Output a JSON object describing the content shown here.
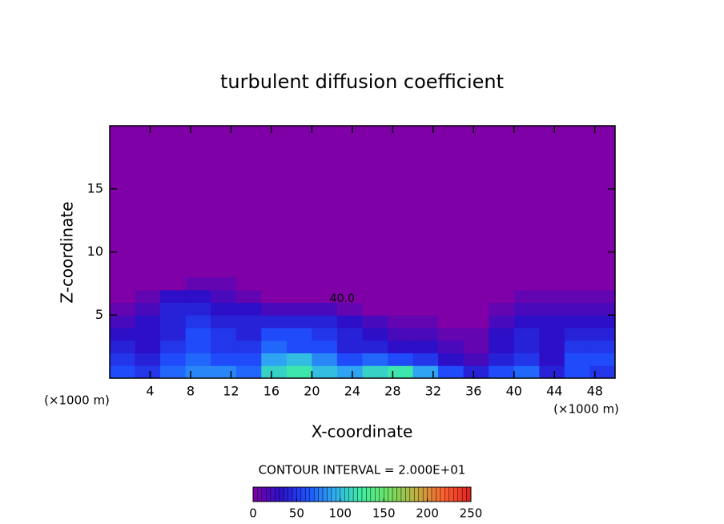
{
  "chart_data": {
    "type": "heatmap",
    "title": "turbulent diffusion coefficient",
    "x_label": "X-coordinate",
    "y_label": "Z-coordinate",
    "x_unit_label": "(×1000 m)",
    "y_unit_label": "(×1000 m)",
    "contour_interval_label": "CONTOUR INTERVAL = 2.000E+01",
    "annotation": "40.0",
    "xlim": [
      0,
      50
    ],
    "xticks": [
      4,
      8,
      12,
      16,
      20,
      24,
      28,
      32,
      36,
      40,
      44,
      48
    ],
    "ylim": [
      0,
      20
    ],
    "yticks": [
      5,
      10,
      15
    ],
    "x": [
      1.25,
      3.75,
      6.25,
      8.75,
      11.25,
      13.75,
      16.25,
      18.75,
      21.25,
      23.75,
      26.25,
      28.75,
      31.25,
      33.75,
      36.25,
      38.75,
      41.25,
      43.75,
      46.25,
      48.75
    ],
    "y": [
      0.5,
      1.5,
      2.5,
      3.5,
      4.5,
      5.5,
      6.5,
      7.5
    ],
    "values": [
      [
        60,
        50,
        70,
        80,
        80,
        70,
        110,
        120,
        100,
        90,
        110,
        120,
        90,
        60,
        40,
        60,
        70,
        40,
        60,
        50
      ],
      [
        50,
        40,
        60,
        70,
        60,
        60,
        90,
        100,
        80,
        60,
        70,
        60,
        50,
        30,
        20,
        40,
        50,
        30,
        60,
        60
      ],
      [
        40,
        30,
        50,
        60,
        50,
        50,
        70,
        60,
        60,
        40,
        40,
        30,
        30,
        20,
        10,
        30,
        40,
        30,
        50,
        50
      ],
      [
        30,
        30,
        40,
        60,
        50,
        40,
        60,
        60,
        50,
        40,
        30,
        20,
        20,
        10,
        10,
        30,
        40,
        30,
        40,
        40
      ],
      [
        20,
        30,
        40,
        50,
        40,
        40,
        40,
        40,
        40,
        30,
        20,
        10,
        10,
        0,
        0,
        20,
        30,
        30,
        30,
        30
      ],
      [
        10,
        20,
        40,
        40,
        30,
        30,
        20,
        20,
        20,
        10,
        0,
        0,
        0,
        0,
        0,
        10,
        20,
        20,
        20,
        20
      ],
      [
        0,
        10,
        30,
        30,
        20,
        10,
        0,
        0,
        0,
        0,
        0,
        0,
        0,
        0,
        0,
        0,
        10,
        10,
        10,
        10
      ],
      [
        0,
        0,
        0,
        10,
        10,
        0,
        0,
        0,
        0,
        0,
        0,
        0,
        0,
        0,
        0,
        0,
        0,
        0,
        0,
        0
      ]
    ],
    "colorbar": {
      "lim": [
        0,
        250
      ],
      "ticks": [
        0,
        50,
        100,
        150,
        200,
        250
      ],
      "colormap": [
        "#8000a8",
        "#2a10c8",
        "#1e50ff",
        "#30b0f0",
        "#40f0a0",
        "#70e060",
        "#c0b040",
        "#ff6030",
        "#e02020"
      ]
    }
  }
}
